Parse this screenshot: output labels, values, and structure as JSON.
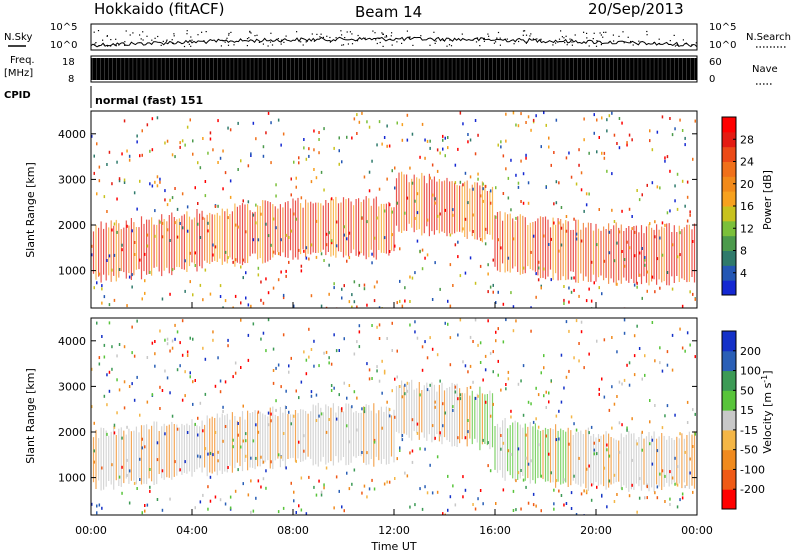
{
  "header": {
    "station": "Hokkaido (fitACF)",
    "beam": "Beam 14",
    "date": "20/Sep/2013"
  },
  "noise_panel": {
    "left_label": "N.Sky",
    "right_label": "N.Search",
    "y_ticks": [
      "10^5",
      "10^0"
    ]
  },
  "freq_panel": {
    "label_line1": "Freq.",
    "label_line2": "[MHz]",
    "left_ticks": [
      "18",
      "8"
    ],
    "right_ticks": [
      "60",
      "0"
    ],
    "right_label": "Nave"
  },
  "cpid_panel": {
    "label": "CPID",
    "text": "normal (fast) 151"
  },
  "chart_data": [
    {
      "type": "heatmap",
      "title": "",
      "ylabel": "Slant Range [km]",
      "xlabel": "",
      "ylim": [
        180,
        4500
      ],
      "y_ticks": [
        "1000",
        "2000",
        "3000",
        "4000"
      ],
      "y_tick_values": [
        1000,
        2000,
        3000,
        4000
      ],
      "x_range_hours": [
        0,
        24
      ],
      "colorbar": {
        "label": "Power [dB]",
        "range": [
          0,
          32
        ],
        "ticks": [
          "4",
          "8",
          "12",
          "16",
          "20",
          "24",
          "28"
        ],
        "tick_values": [
          4,
          8,
          12,
          16,
          20,
          24,
          28
        ],
        "colors": [
          "#1428d2",
          "#2457b4",
          "#2f7a6b",
          "#4b9a4b",
          "#7bc03a",
          "#c8c21e",
          "#f7a11e",
          "#f28a1a",
          "#f0701a",
          "#ec4a17",
          "#e41b12",
          "#ff0000"
        ]
      },
      "grid": false
    },
    {
      "type": "heatmap",
      "title": "",
      "ylabel": "Slant Range [km]",
      "xlabel": "Time UT",
      "ylim": [
        180,
        4500
      ],
      "y_ticks": [
        "1000",
        "2000",
        "3000",
        "4000"
      ],
      "y_tick_values": [
        1000,
        2000,
        3000,
        4000
      ],
      "x_ticks": [
        "00:00",
        "04:00",
        "08:00",
        "12:00",
        "16:00",
        "20:00",
        "00:00"
      ],
      "x_tick_hours": [
        0,
        4,
        8,
        12,
        16,
        20,
        24
      ],
      "x_range_hours": [
        0,
        24
      ],
      "colorbar": {
        "label": "Velocity [m s",
        "label_sup": "-1",
        "label_end": "]",
        "ticks": [
          "200",
          "100",
          "50",
          "15",
          "-15",
          "-50",
          "-100",
          "-200"
        ],
        "tick_values": [
          200,
          100,
          50,
          15,
          -15,
          -50,
          -100,
          -200
        ],
        "colors": [
          "#1431c8",
          "#2a5fb6",
          "#3c9a55",
          "#58c43a",
          "#c8c8c8",
          "#f4b646",
          "#f08a1e",
          "#ef5a16",
          "#ff0000"
        ]
      },
      "grid": false
    }
  ]
}
